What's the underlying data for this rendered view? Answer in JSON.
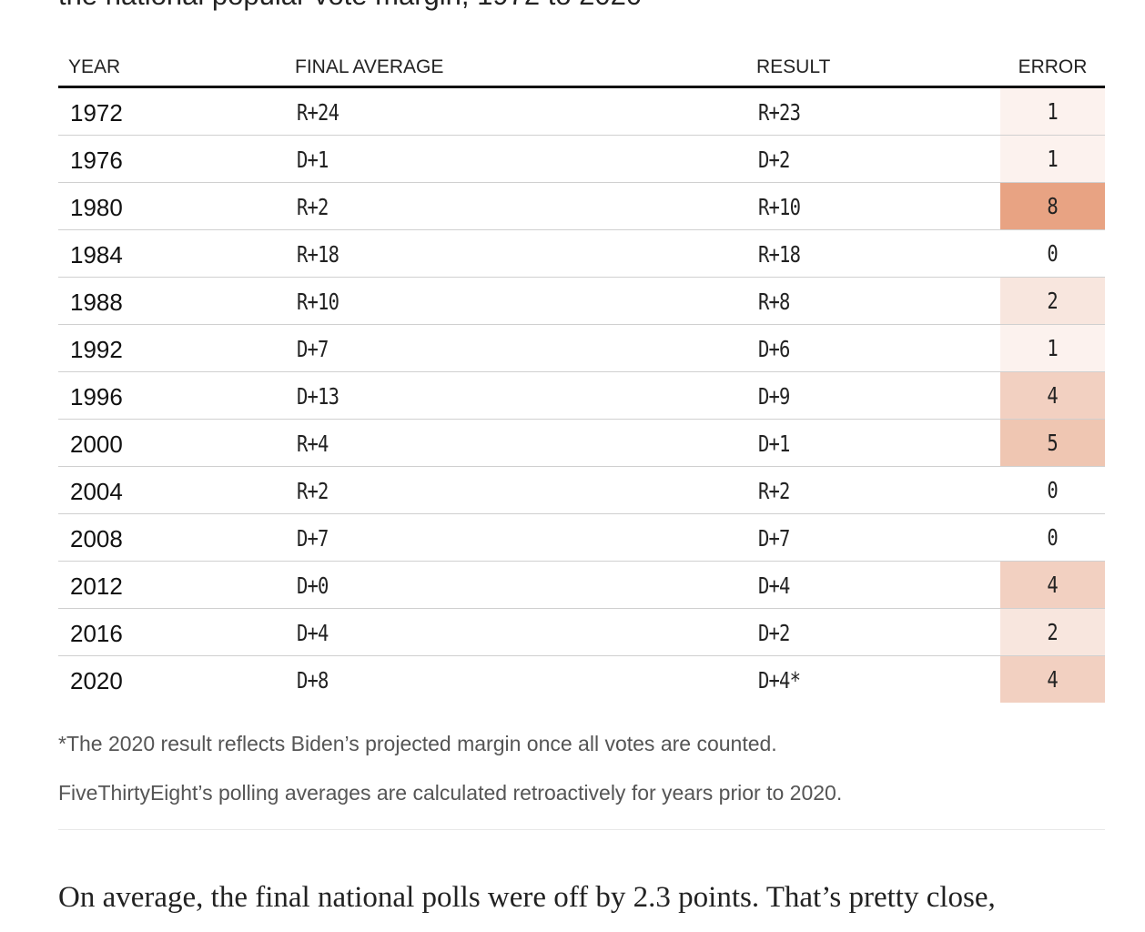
{
  "subtitle": "the national popular vote margin, 1972 to 2020",
  "table": {
    "headers": {
      "year": "YEAR",
      "final_average": "FINAL AVERAGE",
      "result": "RESULT",
      "error": "ERROR"
    },
    "rows": [
      {
        "year": "1972",
        "final_average": "R+24",
        "result": "R+23",
        "error": "1",
        "error_color": "#fcf2ee"
      },
      {
        "year": "1976",
        "final_average": "D+1",
        "result": "D+2",
        "error": "1",
        "error_color": "#fcf2ee"
      },
      {
        "year": "1980",
        "final_average": "R+2",
        "result": "R+10",
        "error": "8",
        "error_color": "#e8a383"
      },
      {
        "year": "1984",
        "final_average": "R+18",
        "result": "R+18",
        "error": "0",
        "error_color": "#ffffff"
      },
      {
        "year": "1988",
        "final_average": "R+10",
        "result": "R+8",
        "error": "2",
        "error_color": "#f8e6de"
      },
      {
        "year": "1992",
        "final_average": "D+7",
        "result": "D+6",
        "error": "1",
        "error_color": "#fcf2ee"
      },
      {
        "year": "1996",
        "final_average": "D+13",
        "result": "D+9",
        "error": "4",
        "error_color": "#f2d0c1"
      },
      {
        "year": "2000",
        "final_average": "R+4",
        "result": "D+1",
        "error": "5",
        "error_color": "#efc6b2"
      },
      {
        "year": "2004",
        "final_average": "R+2",
        "result": "R+2",
        "error": "0",
        "error_color": "#ffffff"
      },
      {
        "year": "2008",
        "final_average": "D+7",
        "result": "D+7",
        "error": "0",
        "error_color": "#ffffff"
      },
      {
        "year": "2012",
        "final_average": "D+0",
        "result": "D+4",
        "error": "4",
        "error_color": "#f2d0c1"
      },
      {
        "year": "2016",
        "final_average": "D+4",
        "result": "D+2",
        "error": "2",
        "error_color": "#f8e6de"
      },
      {
        "year": "2020",
        "final_average": "D+8",
        "result": "D+4*",
        "error": "4",
        "error_color": "#f2d0c1"
      }
    ]
  },
  "notes": {
    "footnote": "*The 2020 result reflects Biden’s projected margin once all votes are counted.",
    "source": "FiveThirtyEight’s polling averages are calculated retroactively for years prior to 2020."
  },
  "body_text": "On average, the final national polls were off by 2.3 points. That’s pretty close,"
}
